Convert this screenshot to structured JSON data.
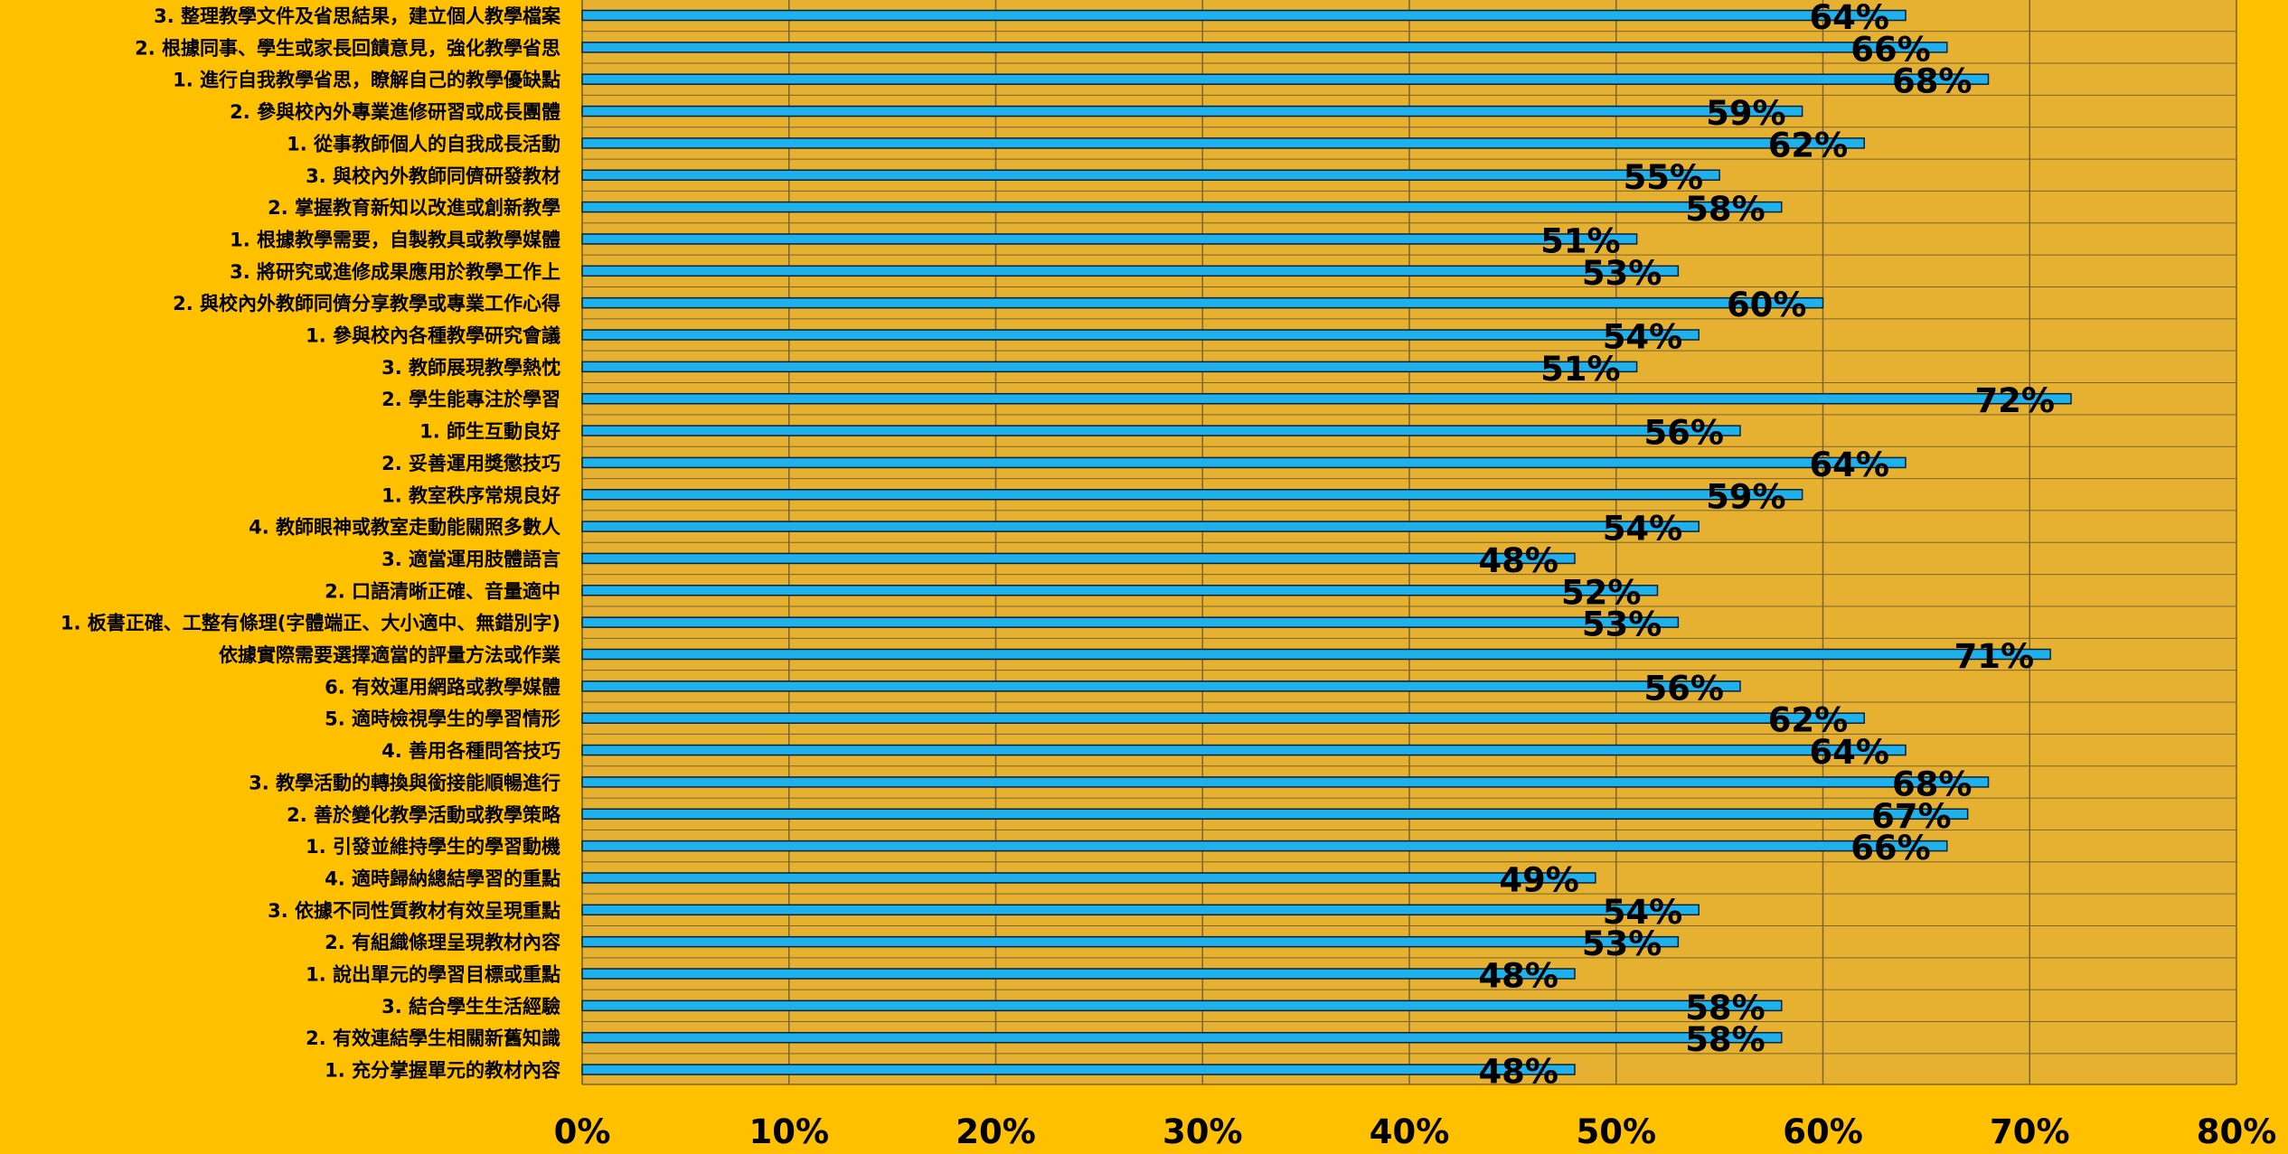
{
  "chart_data": {
    "type": "bar",
    "orientation": "horizontal",
    "title": "",
    "xlabel": "",
    "ylabel": "",
    "xlim": [
      0,
      80
    ],
    "x_ticks": [
      "0%",
      "10%",
      "20%",
      "30%",
      "40%",
      "50%",
      "60%",
      "70%",
      "80%"
    ],
    "grid": true,
    "legend": "none",
    "categories": [
      "3.  整理教學文件及省思結果，建立個人教學檔案",
      "2.  根據同事、學生或家長回饋意見，強化教學省思",
      "1. 進行自我教學省思，瞭解自己的教學優缺點",
      "2. 參與校內外專業進修研習或成長團體",
      "1.  從事教師個人的自我成長活動",
      "3.  與校內外教師同儕研發教材",
      "2.  掌握教育新知以改進或創新教學",
      "1.  根據教學需要，自製教具或教學媒體",
      "3.  將研究或進修成果應用於教學工作上",
      "2.  與校內外教師同儕分享教學或專業工作心得",
      "1.  參與校內各種教學研究會議",
      "3. 教師展現教學熱忱",
      "2. 學生能專注於學習",
      "1. 師生互動良好",
      "2. 妥善運用獎懲技巧",
      "1. 教室秩序常規良好",
      "4. 教師眼神或教室走動能關照多數人",
      "3. 適當運用肢體語言",
      "2. 口語清晰正確、音量適中",
      "1. 板書正確、工整有條理(字體端正、大小適中、無錯別字)",
      "依據實際需要選擇適當的評量方法或作業",
      "6. 有效運用網路或教學媒體",
      "5. 適時檢視學生的學習情形",
      "4. 善用各種問答技巧",
      "3. 教學活動的轉換與銜接能順暢進行",
      "2. 善於變化教學活動或教學策略",
      "1. 引發並維持學生的學習動機",
      "4. 適時歸納總結學習的重點",
      "3. 依據不同性質教材有效呈現重點",
      "2. 有組織條理呈現教材內容",
      "1. 說出單元的學習目標或重點",
      "3. 結合學生生活經驗",
      "2. 有效連結學生相關新舊知識",
      "1. 充分掌握單元的教材內容"
    ],
    "values": [
      64,
      66,
      68,
      59,
      62,
      55,
      58,
      51,
      53,
      60,
      54,
      51,
      72,
      56,
      64,
      59,
      54,
      48,
      52,
      53,
      71,
      56,
      62,
      64,
      68,
      67,
      66,
      49,
      54,
      53,
      48,
      58,
      58,
      48
    ],
    "value_labels": [
      "64%",
      "66%",
      "68%",
      "59%",
      "62%",
      "55%",
      "58%",
      "51%",
      "53%",
      "60%",
      "54%",
      "51%",
      "72%",
      "56%",
      "64%",
      "59%",
      "54%",
      "48%",
      "52%",
      "53%",
      "71%",
      "56%",
      "62%",
      "64%",
      "68%",
      "67%",
      "66%",
      "49%",
      "54%",
      "53%",
      "48%",
      "58%",
      "58%",
      "48%"
    ],
    "colors": {
      "background": "#FFC000",
      "plot_area": "#E6B030",
      "bar_fill": "#1FB1EB",
      "bar_stroke": "#0B2238",
      "gridline": "#7A6530",
      "text": "#000000"
    }
  }
}
